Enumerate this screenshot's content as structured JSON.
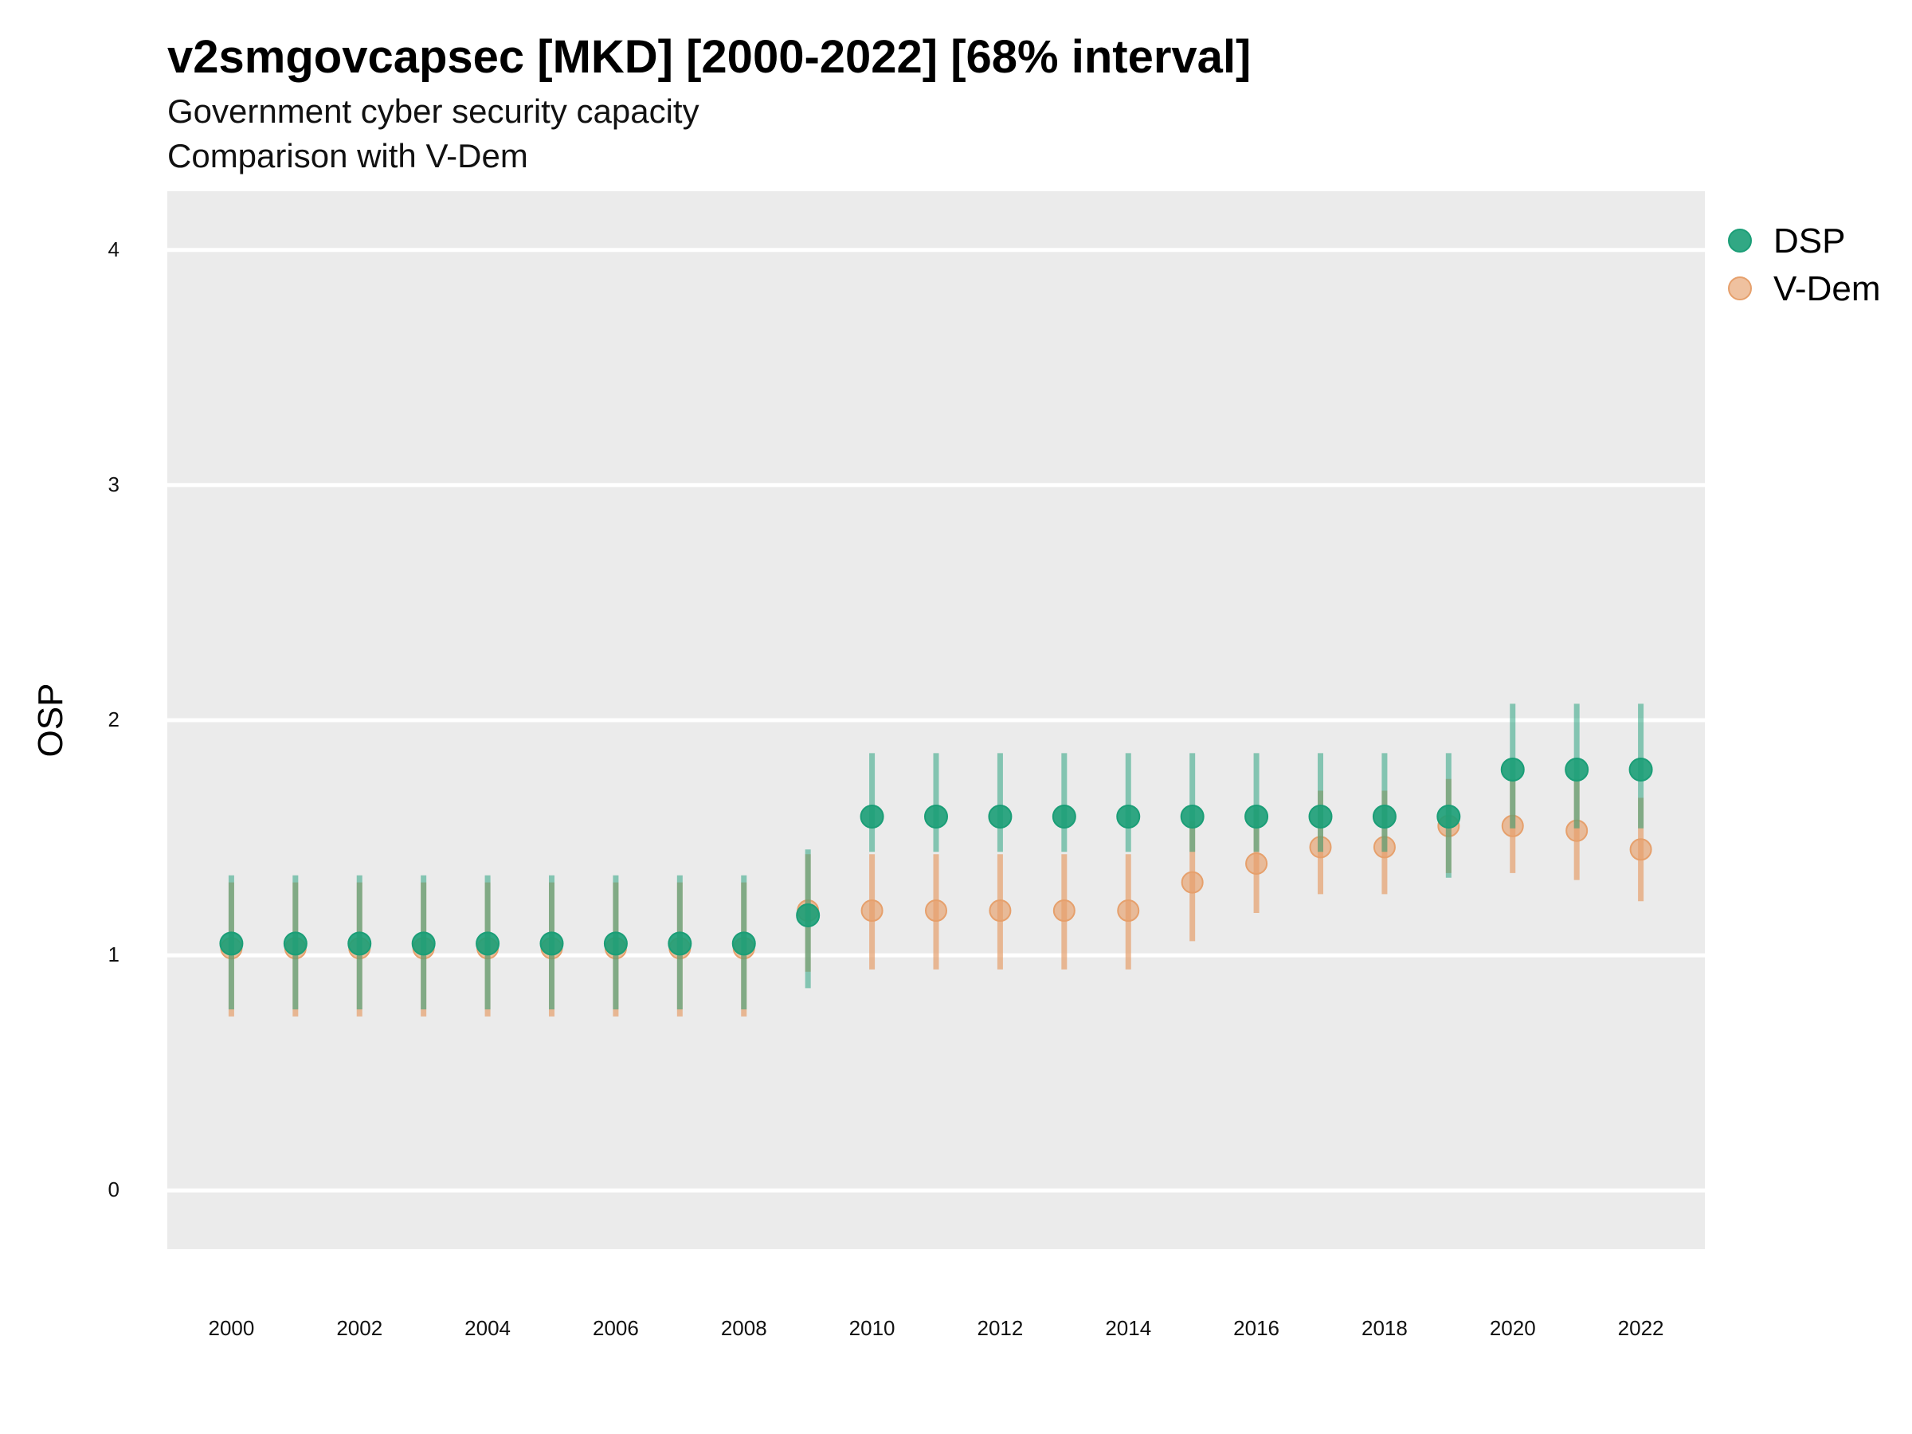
{
  "chart_data": {
    "type": "scatter",
    "title": "v2smgovcapsec [MKD] [2000-2022] [68% interval]",
    "subtitle": [
      "Government cyber security capacity",
      "Comparison with V-Dem"
    ],
    "xlabel": "",
    "ylabel": "OSP",
    "xlim": [
      1999,
      2023
    ],
    "ylim": [
      -0.25,
      4.25
    ],
    "y_ticks": [
      0,
      1,
      2,
      3,
      4
    ],
    "x_ticks": [
      2000,
      2002,
      2004,
      2006,
      2008,
      2010,
      2012,
      2014,
      2016,
      2018,
      2020,
      2022
    ],
    "grid": true,
    "legend_position": "right-top",
    "x": [
      2000,
      2001,
      2002,
      2003,
      2004,
      2005,
      2006,
      2007,
      2008,
      2009,
      2010,
      2011,
      2012,
      2013,
      2014,
      2015,
      2016,
      2017,
      2018,
      2019,
      2020,
      2021,
      2022
    ],
    "series": [
      {
        "name": "DSP",
        "color": "#1b9e77",
        "values": [
          1.05,
          1.05,
          1.05,
          1.05,
          1.05,
          1.05,
          1.05,
          1.05,
          1.05,
          1.17,
          1.59,
          1.59,
          1.59,
          1.59,
          1.59,
          1.59,
          1.59,
          1.59,
          1.59,
          1.59,
          1.79,
          1.79,
          1.79
        ],
        "lower": [
          0.77,
          0.77,
          0.77,
          0.77,
          0.77,
          0.77,
          0.77,
          0.77,
          0.77,
          0.86,
          1.44,
          1.44,
          1.44,
          1.44,
          1.44,
          1.44,
          1.44,
          1.44,
          1.44,
          1.33,
          1.54,
          1.54,
          1.54
        ],
        "upper": [
          1.34,
          1.34,
          1.34,
          1.34,
          1.34,
          1.34,
          1.34,
          1.34,
          1.34,
          1.45,
          1.86,
          1.86,
          1.86,
          1.86,
          1.86,
          1.86,
          1.86,
          1.86,
          1.86,
          1.86,
          2.07,
          2.07,
          2.07
        ]
      },
      {
        "name": "V-Dem",
        "color": "#e6a06c",
        "values": [
          1.03,
          1.03,
          1.03,
          1.03,
          1.03,
          1.03,
          1.03,
          1.03,
          1.03,
          1.19,
          1.19,
          1.19,
          1.19,
          1.19,
          1.19,
          1.31,
          1.39,
          1.46,
          1.46,
          1.55,
          1.55,
          1.53,
          1.45
        ],
        "lower": [
          0.74,
          0.74,
          0.74,
          0.74,
          0.74,
          0.74,
          0.74,
          0.74,
          0.74,
          0.93,
          0.94,
          0.94,
          0.94,
          0.94,
          0.94,
          1.06,
          1.18,
          1.26,
          1.26,
          1.35,
          1.35,
          1.32,
          1.23
        ],
        "upper": [
          1.31,
          1.31,
          1.31,
          1.31,
          1.31,
          1.31,
          1.31,
          1.31,
          1.31,
          1.43,
          1.43,
          1.43,
          1.43,
          1.43,
          1.43,
          1.57,
          1.62,
          1.7,
          1.7,
          1.75,
          1.75,
          1.75,
          1.67
        ]
      }
    ]
  },
  "colors": {
    "panel_background": "#ebebeb",
    "grid": "#ffffff",
    "dsp": "#1b9e77",
    "vdem": "#e6a06c"
  }
}
